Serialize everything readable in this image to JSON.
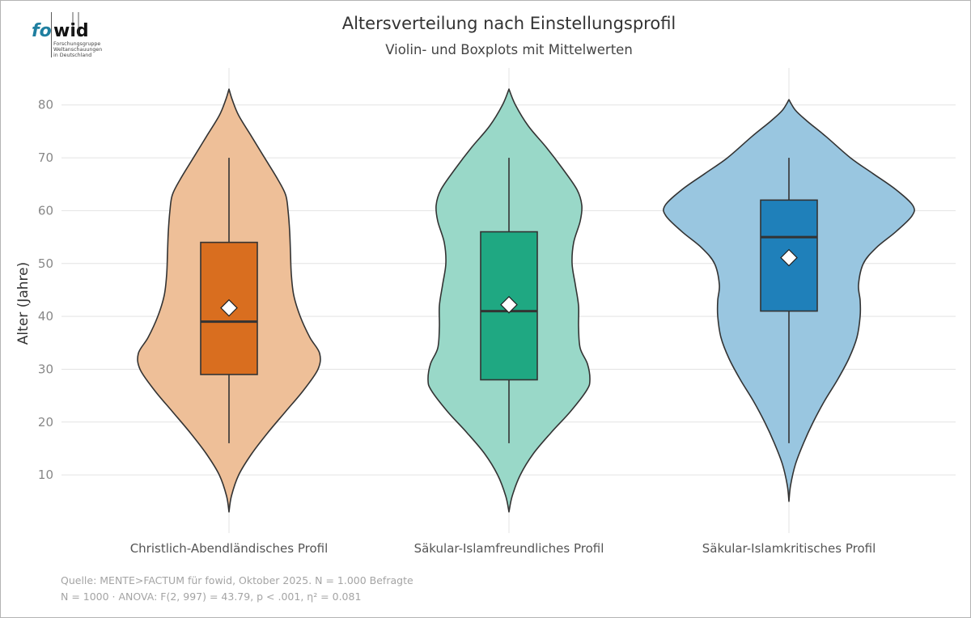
{
  "logo": {
    "part1": "fo",
    "part2": "wid",
    "lines": [
      "Forschungsgruppe",
      "Weltanschauungen",
      "in Deutschland"
    ]
  },
  "chart_data": {
    "type": "violin",
    "title": "Altersverteilung nach Einstellungsprofil",
    "subtitle": "Violin- und Boxplots mit Mittelwerten",
    "xlabel": "",
    "ylabel": "Alter (Jahre)",
    "ylim": [
      -1,
      87
    ],
    "yticks": [
      10,
      20,
      30,
      40,
      50,
      60,
      70,
      80
    ],
    "ytick_labels": [
      "10",
      "20",
      "30",
      "40",
      "50",
      "60",
      "70",
      "80"
    ],
    "grid": true,
    "categories": [
      "Christlich-Abendländisches Profil",
      "Säkular-Islamfreundliches Profil",
      "Säkular-Islamkritisches Profil"
    ],
    "series": [
      {
        "name": "Christlich-Abendländisches Profil",
        "violin_color": "#eebf98",
        "box_color": "#d96e1f",
        "whisker_low": 16,
        "q1": 29,
        "median": 39,
        "q3": 54,
        "whisker_high": 70,
        "mean": 41.6,
        "density_min": 3,
        "density_max": 83,
        "density": [
          [
            3,
            0
          ],
          [
            6,
            3
          ],
          [
            10,
            12
          ],
          [
            14,
            28
          ],
          [
            18,
            48
          ],
          [
            22,
            70
          ],
          [
            26,
            92
          ],
          [
            30,
            110
          ],
          [
            33,
            112
          ],
          [
            36,
            100
          ],
          [
            40,
            88
          ],
          [
            44,
            80
          ],
          [
            48,
            77
          ],
          [
            52,
            76
          ],
          [
            56,
            75
          ],
          [
            60,
            73
          ],
          [
            63,
            70
          ],
          [
            66,
            60
          ],
          [
            70,
            44
          ],
          [
            74,
            28
          ],
          [
            78,
            12
          ],
          [
            81,
            4
          ],
          [
            83,
            0
          ]
        ]
      },
      {
        "name": "Säkular-Islamfreundliches Profil",
        "violin_color": "#99d8c8",
        "box_color": "#1fa882",
        "whisker_low": 16,
        "q1": 28,
        "median": 41,
        "q3": 56,
        "whisker_high": 70,
        "mean": 42.2,
        "density_min": 3,
        "density_max": 83,
        "density": [
          [
            3,
            0
          ],
          [
            6,
            4
          ],
          [
            10,
            14
          ],
          [
            14,
            30
          ],
          [
            18,
            52
          ],
          [
            22,
            76
          ],
          [
            26,
            96
          ],
          [
            28,
            100
          ],
          [
            31,
            97
          ],
          [
            34,
            88
          ],
          [
            38,
            86
          ],
          [
            42,
            86
          ],
          [
            46,
            82
          ],
          [
            50,
            78
          ],
          [
            54,
            80
          ],
          [
            58,
            88
          ],
          [
            61,
            90
          ],
          [
            64,
            84
          ],
          [
            68,
            66
          ],
          [
            72,
            46
          ],
          [
            76,
            24
          ],
          [
            80,
            8
          ],
          [
            83,
            0
          ]
        ]
      },
      {
        "name": "Säkular-Islamkritisches Profil",
        "violin_color": "#99c6e0",
        "box_color": "#1f80ba",
        "whisker_low": 16,
        "q1": 41,
        "median": 55,
        "q3": 62,
        "whisker_high": 70,
        "mean": 51.1,
        "density_min": 5,
        "density_max": 81,
        "density": [
          [
            5,
            0
          ],
          [
            8,
            2
          ],
          [
            12,
            8
          ],
          [
            16,
            18
          ],
          [
            20,
            30
          ],
          [
            24,
            44
          ],
          [
            28,
            60
          ],
          [
            32,
            74
          ],
          [
            36,
            84
          ],
          [
            40,
            88
          ],
          [
            43,
            88
          ],
          [
            46,
            86
          ],
          [
            50,
            92
          ],
          [
            53,
            108
          ],
          [
            56,
            132
          ],
          [
            59,
            152
          ],
          [
            61,
            153
          ],
          [
            64,
            132
          ],
          [
            67,
            104
          ],
          [
            70,
            76
          ],
          [
            74,
            46
          ],
          [
            77,
            22
          ],
          [
            79,
            8
          ],
          [
            81,
            0
          ]
        ]
      }
    ],
    "annotations": [
      "Quelle: MENTE>FACTUM für fowid, Oktober 2025. N = 1.000 Befragte",
      "N = 1000 · ANOVA: F(2, 997) = 43.79, p < .001, η² = 0.081"
    ]
  }
}
